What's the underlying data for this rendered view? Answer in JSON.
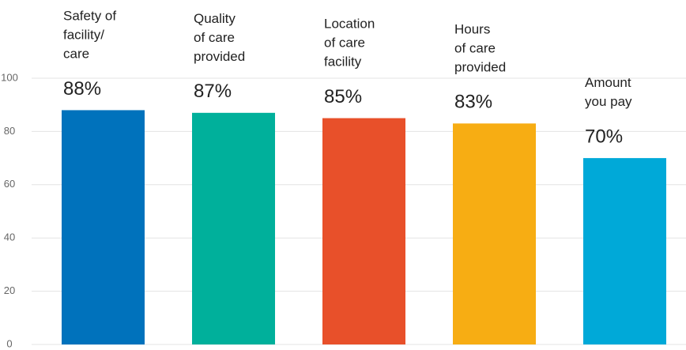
{
  "chart_data": {
    "type": "bar",
    "categories": [
      [
        "Safety of",
        "facility/",
        "care"
      ],
      [
        "Quality",
        "of care",
        "provided"
      ],
      [
        "Location",
        "of care",
        "facility"
      ],
      [
        "Hours",
        "of care",
        "provided"
      ],
      [
        "Amount",
        "you pay"
      ]
    ],
    "values": [
      88,
      87,
      85,
      83,
      70
    ],
    "value_labels": [
      "88%",
      "87%",
      "85%",
      "83%",
      "70%"
    ],
    "colors": [
      "#0072bc",
      "#00b09b",
      "#e8502a",
      "#f7ad13",
      "#00a9d8"
    ],
    "ylim": [
      0,
      100
    ],
    "yticks": [
      0,
      20,
      40,
      60,
      80,
      100
    ],
    "grid": true
  }
}
